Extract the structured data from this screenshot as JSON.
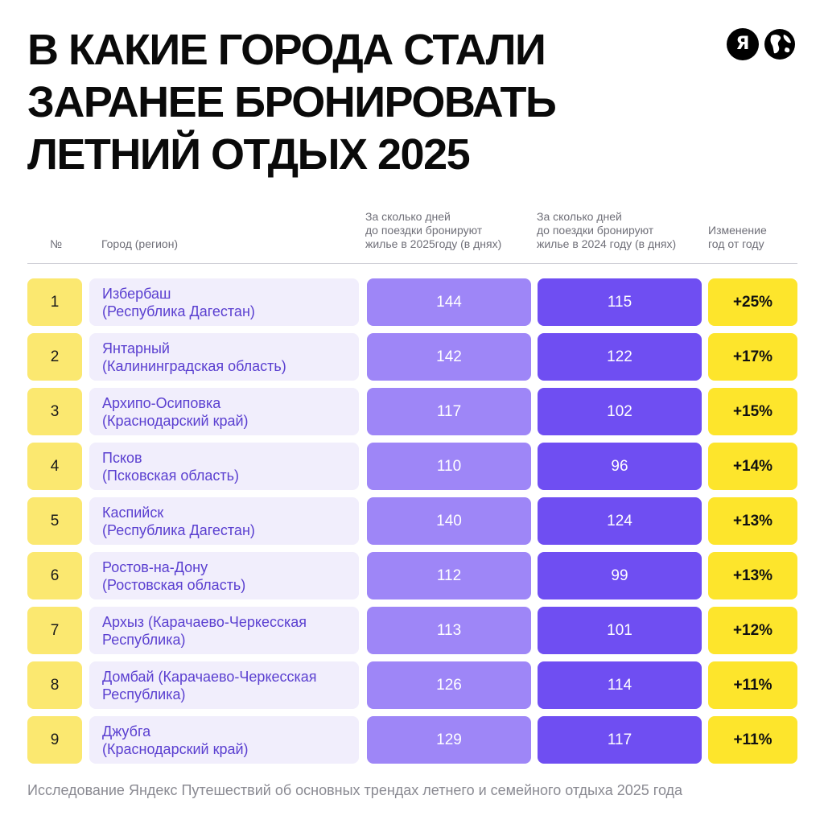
{
  "title": {
    "line1": "В КАКИЕ ГОРОДА СТАЛИ",
    "line2": "ЗАРАНЕЕ БРОНИРОВАТЬ",
    "line3": "ЛЕТНИЙ ОТДЫХ 2025"
  },
  "logos": {
    "yandex_letter": "Я",
    "icons": [
      "yandex-logo-icon",
      "globe-icon"
    ]
  },
  "table": {
    "headers": {
      "num": "№",
      "city": "Город (регион)",
      "days_2025": [
        "За сколько дней",
        "до поездки бронируют",
        "жилье в 2025году (в днях)"
      ],
      "days_2024": [
        "За сколько дней",
        "до поездки бронируют",
        "жилье в 2024 году (в днях)"
      ],
      "change": [
        "Изменение",
        "год от году"
      ]
    },
    "rows": [
      {
        "num": "1",
        "city": "Избербаш",
        "region": "(Республика Дагестан)",
        "days_2025": "144",
        "days_2024": "115",
        "change": "+25%"
      },
      {
        "num": "2",
        "city": "Янтарный",
        "region": "(Калининградская область)",
        "days_2025": "142",
        "days_2024": "122",
        "change": "+17%"
      },
      {
        "num": "3",
        "city": "Архипо-Осиповка",
        "region": "(Краснодарский край)",
        "days_2025": "117",
        "days_2024": "102",
        "change": "+15%"
      },
      {
        "num": "4",
        "city": "Псков",
        "region": "(Псковская область)",
        "days_2025": "110",
        "days_2024": "96",
        "change": "+14%"
      },
      {
        "num": "5",
        "city": "Каспийск",
        "region": "(Республика Дагестан)",
        "days_2025": "140",
        "days_2024": "124",
        "change": "+13%"
      },
      {
        "num": "6",
        "city": "Ростов-на-Дону",
        "region": "(Ростовская область)",
        "days_2025": "112",
        "days_2024": "99",
        "change": "+13%"
      },
      {
        "num": "7",
        "city": "Архыз (Карачаево-Черкесская",
        "region": "Республика)",
        "days_2025": "113",
        "days_2024": "101",
        "change": "+12%"
      },
      {
        "num": "8",
        "city": "Домбай (Карачаево-Черкесская",
        "region": "Республика)",
        "days_2025": "126",
        "days_2024": "114",
        "change": "+11%"
      },
      {
        "num": "9",
        "city": "Джубга",
        "region": "(Краснодарский край)",
        "days_2025": "129",
        "days_2024": "117",
        "change": "+11%"
      }
    ]
  },
  "footer": "Исследование Яндекс Путешествий об основных трендах летнего и семейного отдыха 2025 года",
  "colors": {
    "num_bg": "#fbe870",
    "city_bg": "#f1eefc",
    "city_text": "#5a3fd0",
    "days_2025_bg": "#9e86f7",
    "days_2024_bg": "#6f4ef2",
    "change_bg": "#fde52c"
  }
}
